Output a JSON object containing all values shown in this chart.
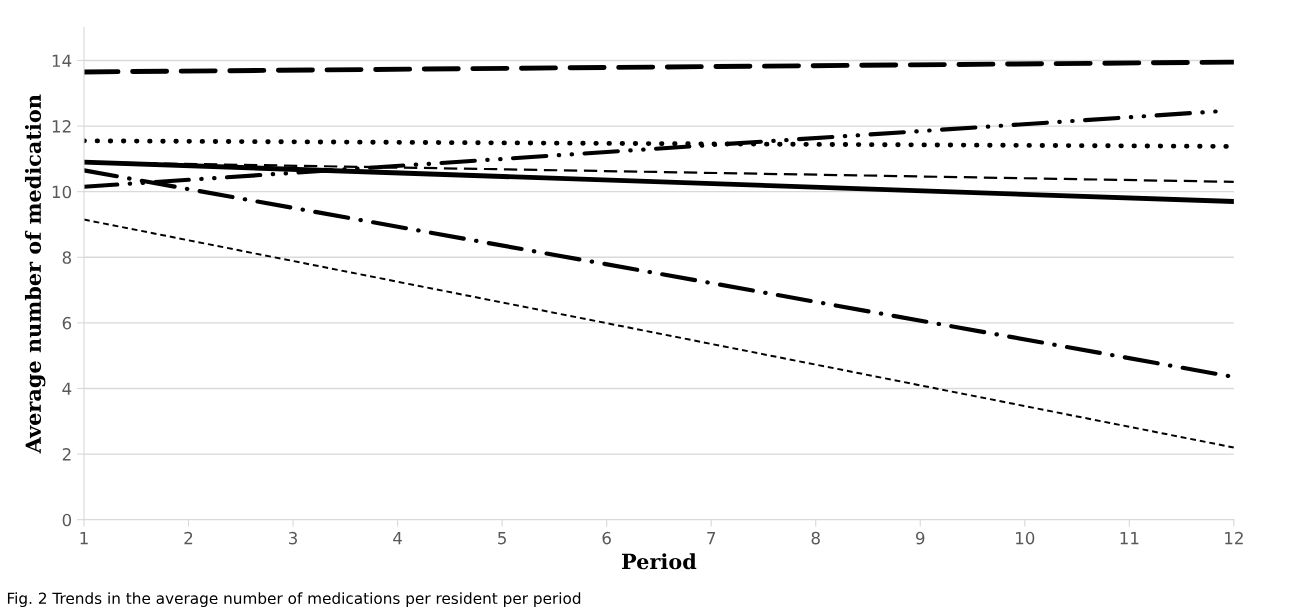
{
  "chart_data": {
    "type": "line",
    "xlabel": "Period",
    "ylabel": "Average number of medication",
    "x": [
      1,
      12
    ],
    "series": [
      {
        "color": "#000000",
        "line_style": "longdash",
        "values": [
          13.65,
          13.95
        ]
      },
      {
        "color": "#000000",
        "line_style": "dotted",
        "values": [
          11.55,
          11.38
        ]
      },
      {
        "color": "#000000",
        "line_style": "dashdotdot",
        "x": [
          1,
          11.85
        ],
        "values": [
          10.15,
          12.45
        ]
      },
      {
        "color": "#000000",
        "line_style": "dashed",
        "values": [
          10.9,
          10.3
        ]
      },
      {
        "color": "#000000",
        "line_style": "solid",
        "values": [
          10.9,
          9.7
        ]
      },
      {
        "color": "#000000",
        "line_style": "dashdot",
        "values": [
          10.65,
          4.35
        ]
      },
      {
        "color": "#000000",
        "line_style": "shortdash",
        "values": [
          9.15,
          2.2
        ]
      }
    ],
    "xlim": [
      1,
      12
    ],
    "xticks": [
      1,
      2,
      3,
      4,
      5,
      6,
      7,
      8,
      9,
      10,
      11,
      12
    ],
    "ylim": [
      0,
      15
    ],
    "yticks": [
      0,
      2,
      4,
      6,
      8,
      10,
      12,
      14
    ],
    "grid": "y",
    "legend": false,
    "marker": "none",
    "annotations": [
      "Fig. 2 Trends in the average number of medications per resident per period"
    ]
  }
}
